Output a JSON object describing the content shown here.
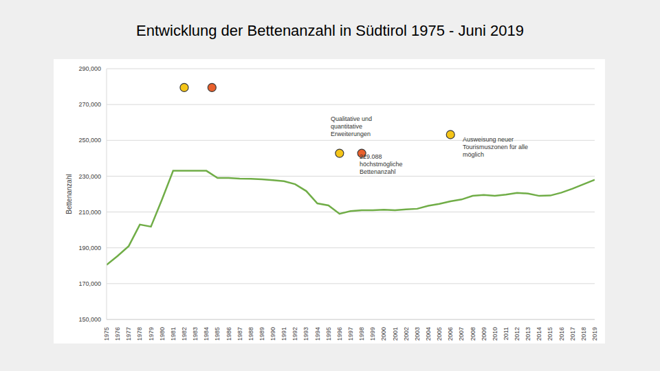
{
  "chart_data": {
    "type": "line",
    "title": "Entwicklung der Bettenanzahl in Südtirol 1975 - Juni 2019",
    "y_label": "Bettenanzahl",
    "x": [
      1975,
      1976,
      1977,
      1978,
      1979,
      1980,
      1981,
      1982,
      1983,
      1984,
      1985,
      1986,
      1987,
      1988,
      1989,
      1990,
      1991,
      1992,
      1993,
      1994,
      1995,
      1996,
      1997,
      1998,
      1999,
      2000,
      2001,
      2002,
      2003,
      2004,
      2005,
      2006,
      2007,
      2008,
      2009,
      2010,
      2011,
      2012,
      2013,
      2014,
      2015,
      2016,
      2017,
      2018,
      2019
    ],
    "values": [
      180500,
      185500,
      191000,
      203000,
      201800,
      217000,
      233000,
      233000,
      233000,
      233000,
      229000,
      229000,
      228600,
      228500,
      228200,
      227800,
      227200,
      225500,
      221700,
      214800,
      213700,
      209000,
      210500,
      211000,
      211000,
      211300,
      211000,
      211500,
      211800,
      213500,
      214500,
      216000,
      217000,
      219000,
      219500,
      219000,
      219700,
      220700,
      220300,
      219000,
      219200,
      220800,
      223000,
      225500,
      228000
    ],
    "color": "#70ad47",
    "xlim": [
      1975,
      2019
    ],
    "xticks": [
      1975,
      1976,
      1977,
      1978,
      1979,
      1980,
      1981,
      1982,
      1983,
      1984,
      1985,
      1986,
      1987,
      1988,
      1989,
      1990,
      1991,
      1992,
      1993,
      1994,
      1995,
      1996,
      1997,
      1998,
      1999,
      2000,
      2001,
      2002,
      2003,
      2004,
      2005,
      2006,
      2007,
      2008,
      2009,
      2010,
      2011,
      2012,
      2013,
      2014,
      2015,
      2016,
      2017,
      2018,
      2019
    ],
    "ylim": [
      150000,
      290000
    ],
    "yticks": [
      {
        "value": 150000,
        "label": "150,000"
      },
      {
        "value": 170000,
        "label": "170,000"
      },
      {
        "value": 190000,
        "label": "190,000"
      },
      {
        "value": 210000,
        "label": "210,000"
      },
      {
        "value": 230000,
        "label": "230,000"
      },
      {
        "value": 250000,
        "label": "250,000"
      },
      {
        "value": 270000,
        "label": "270,000"
      },
      {
        "value": 290000,
        "label": "290,000"
      }
    ],
    "grid": true,
    "points": [
      {
        "x": 1982,
        "y": 279500,
        "color": "#f5c518"
      },
      {
        "x": 1984.5,
        "y": 279500,
        "color": "#e8602c"
      },
      {
        "x": 1996,
        "y": 242800,
        "color": "#f5c518"
      },
      {
        "x": 1998,
        "y": 242800,
        "color": "#e8602c"
      },
      {
        "x": 2006,
        "y": 253200,
        "color": "#f5c518"
      }
    ],
    "annotations": [
      {
        "text": [
          "Qualitative und",
          "quantitative",
          "Erweiterungen"
        ],
        "x": 1995.2,
        "y": 260900
      },
      {
        "text": [
          "229.088",
          "höchstmögliche",
          "Bettenanzahl"
        ],
        "x": 1997.8,
        "y": 239800
      },
      {
        "text": [
          "Ausweisung neuer",
          "Tourismuszonen für alle",
          "möglich"
        ],
        "x": 2007.1,
        "y": 249400
      }
    ]
  }
}
